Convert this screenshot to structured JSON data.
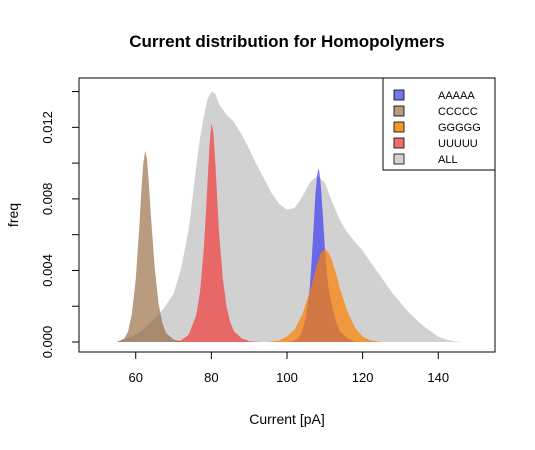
{
  "chart_data": {
    "type": "area",
    "title": "Current distribution for Homopolymers",
    "xlabel": "Current [pA]",
    "ylabel": "freq",
    "xlim": [
      45,
      155
    ],
    "ylim": [
      0,
      0.0142
    ],
    "x_ticks": [
      60,
      80,
      100,
      120,
      140
    ],
    "x_tick_labels": [
      "60",
      "80",
      "100",
      "120",
      "140"
    ],
    "y_ticks": [
      0.0,
      0.002,
      0.004,
      0.006,
      0.008,
      0.01,
      0.012,
      0.014
    ],
    "y_tick_labels": [
      "0.000",
      "0.004",
      "0.008",
      "0.012"
    ],
    "y_labeled_ticks": [
      0.0,
      0.004,
      0.008,
      0.012
    ],
    "grid": false,
    "legend_position": "top-right",
    "series": [
      {
        "name": "ALL",
        "color": "#bebebe",
        "opacity": 0.7,
        "x": [
          55,
          60,
          62.5,
          65,
          67.5,
          70,
          72,
          74,
          75,
          76,
          77,
          78,
          79,
          80,
          81,
          82,
          84,
          86,
          88,
          90,
          92,
          94,
          96,
          98,
          100,
          102,
          104,
          106,
          108,
          110,
          112,
          114,
          116,
          118,
          120,
          122,
          124,
          126,
          128,
          130,
          132,
          134,
          136,
          138,
          140,
          142,
          144,
          146
        ],
        "y": [
          0,
          0.0004,
          0.0008,
          0.0013,
          0.0019,
          0.0027,
          0.0041,
          0.0063,
          0.008,
          0.0098,
          0.0114,
          0.0126,
          0.0136,
          0.014,
          0.0139,
          0.0133,
          0.0127,
          0.0123,
          0.0116,
          0.0108,
          0.0099,
          0.0091,
          0.0083,
          0.0077,
          0.0074,
          0.0075,
          0.0081,
          0.0089,
          0.0093,
          0.0089,
          0.0078,
          0.0068,
          0.0061,
          0.0056,
          0.0051,
          0.0045,
          0.0039,
          0.0033,
          0.0027,
          0.0022,
          0.0017,
          0.0013,
          0.0009,
          0.0006,
          0.0003,
          0.00015,
          5e-05,
          0
        ]
      },
      {
        "name": "AAAAA",
        "color": "#0000ff",
        "opacity": 0.5,
        "x": [
          101,
          103,
          104,
          105,
          106,
          106.5,
          107,
          107.5,
          108,
          108.3,
          108.6,
          109,
          109.5,
          110,
          110.5,
          111,
          112,
          113,
          114,
          116,
          118
        ],
        "y": [
          0,
          0.0002,
          0.0006,
          0.0014,
          0.003,
          0.0045,
          0.0063,
          0.0082,
          0.0094,
          0.0097,
          0.0095,
          0.0086,
          0.007,
          0.0053,
          0.004,
          0.003,
          0.0019,
          0.0011,
          0.0006,
          0.0002,
          0
        ]
      },
      {
        "name": "CCCCC",
        "color": "#8b5a2b",
        "opacity": 0.6,
        "x": [
          55,
          57,
          58,
          59,
          60,
          61,
          61.5,
          62,
          62.5,
          63,
          63.5,
          64,
          65,
          66,
          67,
          68,
          70,
          72
        ],
        "y": [
          0,
          0.0002,
          0.0006,
          0.0016,
          0.0035,
          0.0066,
          0.0085,
          0.01,
          0.0107,
          0.0102,
          0.0088,
          0.0071,
          0.0042,
          0.0022,
          0.0011,
          0.0005,
          0.00015,
          0
        ]
      },
      {
        "name": "GGGGG",
        "color": "#ff7f00",
        "opacity": 0.7,
        "x": [
          95,
          98,
          100,
          102,
          104,
          106,
          107,
          108,
          109,
          110,
          111,
          112,
          113,
          114,
          116,
          118,
          120,
          122,
          125
        ],
        "y": [
          0,
          0.0001,
          0.0003,
          0.0007,
          0.0015,
          0.0028,
          0.0036,
          0.0044,
          0.005,
          0.0052,
          0.005,
          0.0045,
          0.0038,
          0.003,
          0.0017,
          0.0008,
          0.0003,
          0.0001,
          0
        ]
      },
      {
        "name": "UUUUU",
        "color": "#ff0000",
        "opacity": 0.5,
        "x": [
          70,
          72,
          74,
          76,
          77,
          78,
          78.5,
          79,
          79.5,
          80,
          80.5,
          81,
          81.5,
          82,
          83,
          84,
          85,
          86,
          88,
          90,
          93
        ],
        "y": [
          0,
          0.0001,
          0.0004,
          0.0015,
          0.0028,
          0.0052,
          0.007,
          0.009,
          0.011,
          0.0122,
          0.0118,
          0.0102,
          0.0082,
          0.0062,
          0.0036,
          0.002,
          0.0011,
          0.0006,
          0.0002,
          5e-05,
          0
        ]
      }
    ],
    "draw_order": [
      "ALL",
      "AAAAA",
      "CCCCC",
      "GGGGG",
      "UUUUU"
    ],
    "legend": [
      {
        "label": "AAAAA",
        "color": "#7474f0"
      },
      {
        "label": "CCCCC",
        "color": "#b89a7c"
      },
      {
        "label": "GGGGG",
        "color": "#f3962e"
      },
      {
        "label": "UUUUU",
        "color": "#f26e6e"
      },
      {
        "label": "ALL",
        "color": "#d3d3d3"
      }
    ]
  }
}
